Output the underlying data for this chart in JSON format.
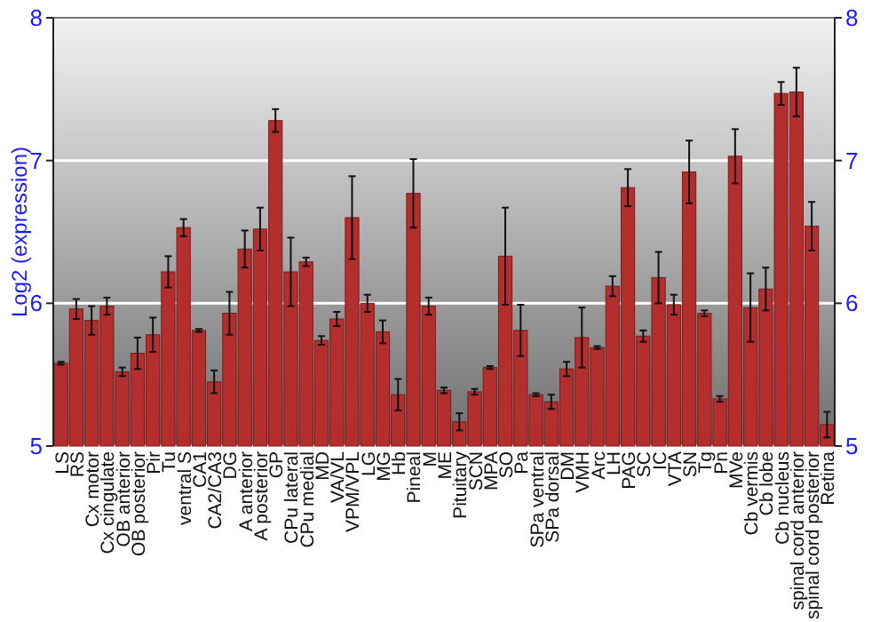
{
  "chart_data": {
    "type": "bar",
    "ylabel": "Log2 (expression)",
    "categories": [
      "LS",
      "RS",
      "Cx motor",
      "Cx cingulate",
      "OB anterior",
      "OB posterior",
      "Pir",
      "Tu",
      "ventral S",
      "CA1",
      "CA2/CA3",
      "DG",
      "A anterior",
      "A posterior",
      "GP",
      "CPu lateral",
      "CPu medial",
      "MD",
      "VA/VL",
      "VPM/VPL",
      "LG",
      "MG",
      "Hb",
      "Pineal",
      "M",
      "ME",
      "Pituitary",
      "SCN",
      "MPA",
      "SO",
      "Pa",
      "SPa ventral",
      "SPa dorsal",
      "DM",
      "VMH",
      "Arc",
      "LH",
      "PAG",
      "SC",
      "IC",
      "VTA",
      "SN",
      "Tg",
      "Pn",
      "MVe",
      "Cb vermis",
      "Cb lobe",
      "Cb nucleus",
      "spinal cord anterior",
      "spinal cord posterior",
      "Retina"
    ],
    "values": [
      5.58,
      5.96,
      5.88,
      5.98,
      5.52,
      5.65,
      5.78,
      6.22,
      6.53,
      5.81,
      5.45,
      5.93,
      6.38,
      6.52,
      7.28,
      6.22,
      6.29,
      5.74,
      5.89,
      6.6,
      6.0,
      5.8,
      5.36,
      6.77,
      5.98,
      5.39,
      5.17,
      5.38,
      5.55,
      6.33,
      5.81,
      5.36,
      5.31,
      5.54,
      5.76,
      5.69,
      6.12,
      6.81,
      5.77,
      6.18,
      5.99,
      6.92,
      5.93,
      5.33,
      7.03,
      5.97,
      6.1,
      7.47,
      7.48,
      6.54,
      5.15
    ],
    "errors": [
      0.01,
      0.07,
      0.1,
      0.06,
      0.03,
      0.11,
      0.12,
      0.11,
      0.06,
      0.01,
      0.08,
      0.15,
      0.13,
      0.15,
      0.08,
      0.24,
      0.03,
      0.03,
      0.05,
      0.29,
      0.06,
      0.08,
      0.11,
      0.24,
      0.06,
      0.02,
      0.06,
      0.02,
      0.01,
      0.34,
      0.18,
      0.01,
      0.05,
      0.05,
      0.21,
      0.01,
      0.07,
      0.13,
      0.04,
      0.18,
      0.07,
      0.22,
      0.02,
      0.02,
      0.19,
      0.24,
      0.15,
      0.08,
      0.17,
      0.17,
      0.09
    ],
    "color": "#b52e2e",
    "ylim": [
      5,
      8
    ],
    "yticks": [
      5,
      6,
      7,
      8
    ],
    "y2lim": [
      5,
      8
    ],
    "y2ticks": [
      5,
      6,
      7,
      8
    ],
    "grid": "y"
  }
}
